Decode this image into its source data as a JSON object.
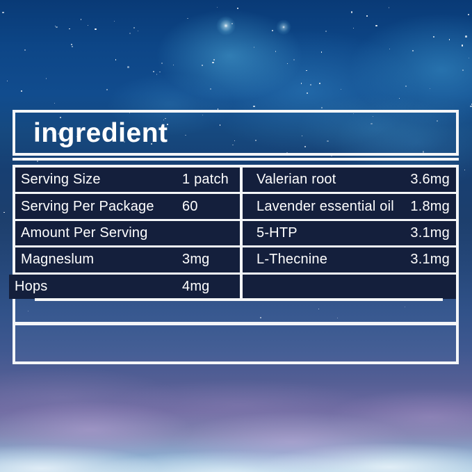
{
  "page_title": "ingredient",
  "ingredients_table": {
    "left_column": {
      "rows": [
        {
          "label": "Serving Size",
          "value": "1 patch"
        },
        {
          "label": "Serving Per Package",
          "value": "60"
        },
        {
          "label": "Amount Per Serving",
          "value": ""
        },
        {
          "label": "Magneslum",
          "value": "3mg"
        },
        {
          "label": "Hops",
          "value": "4mg"
        }
      ]
    },
    "right_column": {
      "rows": [
        {
          "label": "Valerian root",
          "value": "3.6mg"
        },
        {
          "label": "Lavender essential oil",
          "value": "1.8mg"
        },
        {
          "label": "5-HTP",
          "value": "3.1mg"
        },
        {
          "label": "L-Thecnine",
          "value": "3.1mg"
        },
        {
          "label": "",
          "value": ""
        }
      ]
    }
  },
  "colors": {
    "line_white": "#f4f6f8",
    "cell_navy": "#141f3c",
    "text_white": "#ffffff",
    "sky_top_blue": "#0d4586",
    "nebula_cyan": "#4fb4dc",
    "cloud_purple": "#9b8cba",
    "cloud_light": "#dceaf6"
  }
}
